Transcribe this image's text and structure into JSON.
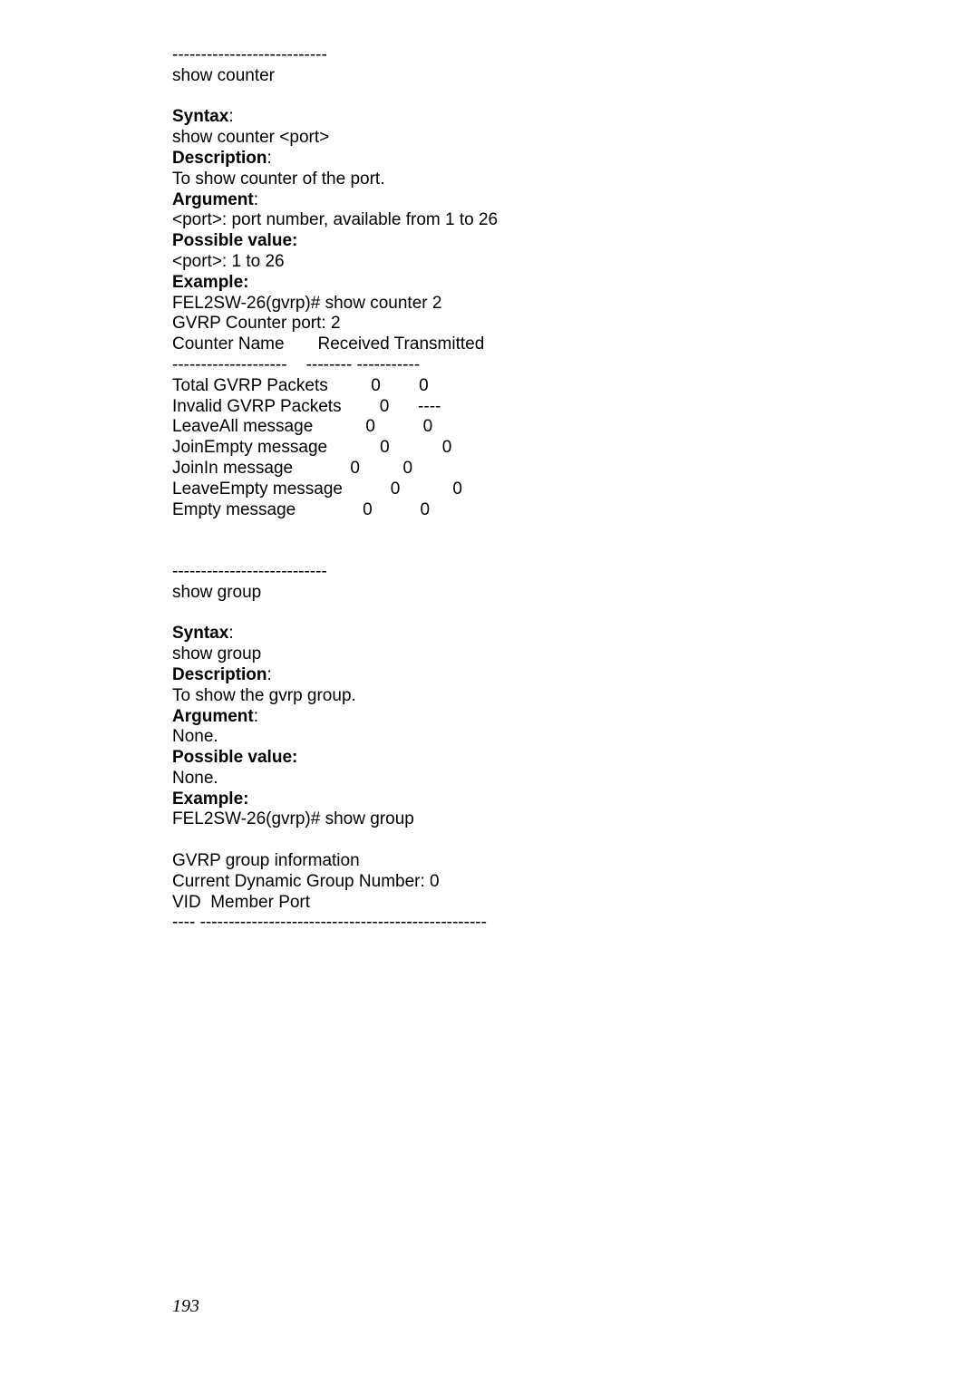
{
  "sep1": "---------------------------",
  "title1": "show counter",
  "blank": " ",
  "syntax_label": "Syntax",
  "colon": ":",
  "syntax1": "show counter <port>",
  "desc_label": "Description",
  "desc1": "To show counter of the port.",
  "arg_label": "Argument",
  "arg1": "<port>: port number, available from 1 to 26",
  "possval_label": "Possible value:",
  "possval1": "<port>: 1 to 26",
  "example_label": "Example:",
  "example1": "FEL2SW-26(gvrp)# show counter 2",
  "gvrp_port": "GVRP Counter port: 2",
  "header_cols": "Counter Name       Received Transmitted",
  "sep2": "--------------------    -------- -----------",
  "row1": "Total GVRP Packets         0        0",
  "row2": "Invalid GVRP Packets        0      ----",
  "row3": "LeaveAll message           0          0",
  "row4": "JoinEmpty message           0           0",
  "row5": "JoinIn message            0         0",
  "row6": "LeaveEmpty message          0           0",
  "row7": "Empty message              0          0",
  "sep3": "---------------------------",
  "title2": "show group",
  "syntax2": "show group",
  "desc2": "To show the gvrp group.",
  "arg2": "None.",
  "possval2": "None.",
  "example2": "FEL2SW-26(gvrp)# show group",
  "gvrp_info": "GVRP group information",
  "gvrp_dyn": "Current Dynamic Group Number: 0",
  "vid_header": "VID  Member Port",
  "sep4": "---- --------------------------------------------------",
  "page_number": "193"
}
